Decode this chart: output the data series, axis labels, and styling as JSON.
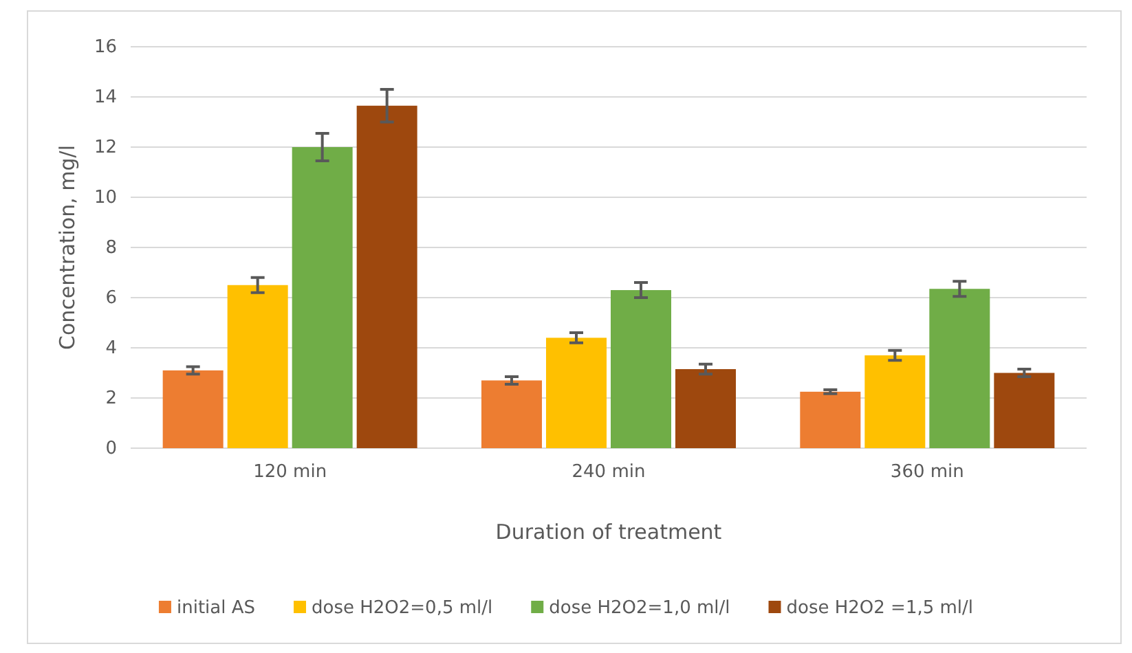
{
  "chart_data": {
    "type": "bar",
    "xlabel": "Duration of treatment",
    "ylabel": "Concentration, mg/l",
    "categories": [
      "120 min",
      "240 min",
      "360 min"
    ],
    "series": [
      {
        "name": "initial AS",
        "color": "#ed7d31",
        "values": [
          3.1,
          2.7,
          2.25
        ],
        "errors": [
          0.15,
          0.15,
          0.08
        ]
      },
      {
        "name": "dose H2O2=0,5 ml/l",
        "color": "#ffc000",
        "values": [
          6.5,
          4.4,
          3.7
        ],
        "errors": [
          0.3,
          0.2,
          0.2
        ]
      },
      {
        "name": "dose H2O2=1,0 ml/l",
        "color": "#70ad47",
        "values": [
          12.0,
          6.3,
          6.35
        ],
        "errors": [
          0.55,
          0.3,
          0.3
        ]
      },
      {
        "name": "dose H2O2 =1,5 ml/l",
        "color": "#9e480e",
        "values": [
          13.65,
          3.15,
          3.0
        ],
        "errors": [
          0.65,
          0.2,
          0.15
        ]
      }
    ],
    "ylim": [
      0,
      16
    ],
    "yticks": [
      0,
      2,
      4,
      6,
      8,
      10,
      12,
      14,
      16
    ],
    "grid": "y",
    "legend": "bottom"
  }
}
